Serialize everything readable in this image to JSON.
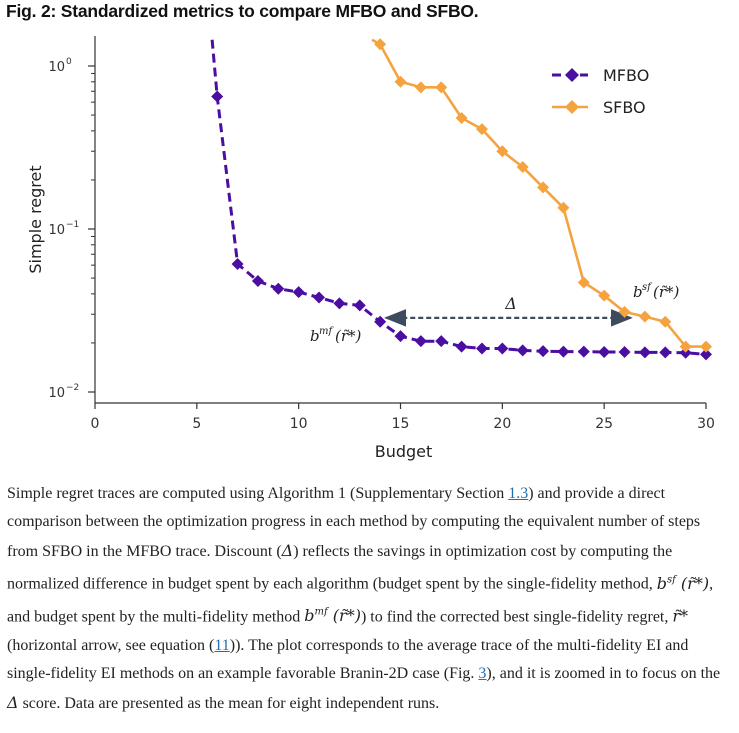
{
  "figure": {
    "title": "Fig. 2: Standardized metrics to compare MFBO and SFBO."
  },
  "chart_data": {
    "type": "line",
    "xlabel": "Budget",
    "ylabel": "Simple regret",
    "xlim": [
      0,
      30
    ],
    "ylim": [
      0.0095,
      1.45
    ],
    "yscale": "log",
    "xticks": [
      "0",
      "5",
      "10",
      "15",
      "20",
      "25",
      "30"
    ],
    "xtick_values": [
      0,
      5,
      10,
      15,
      20,
      25,
      30
    ],
    "yticks": [
      "10",
      "10",
      "10"
    ],
    "ytick_exponents": [
      "0",
      "−1",
      "−2"
    ],
    "ytick_values": [
      1,
      0.1,
      0.01
    ],
    "legend_position": "top-right",
    "grid": false,
    "series": [
      {
        "name": "MFBO",
        "color": "#4b0ea3",
        "style": "dashed",
        "marker": "diamond",
        "x": [
          6,
          7,
          8,
          9,
          10,
          11,
          12,
          13,
          14,
          15,
          16,
          17,
          18,
          19,
          20,
          21,
          22,
          23,
          24,
          25,
          26,
          27,
          28,
          29,
          30
        ],
        "y": [
          0.65,
          0.061,
          0.048,
          0.043,
          0.041,
          0.038,
          0.035,
          0.034,
          0.027,
          0.022,
          0.0205,
          0.0205,
          0.019,
          0.0185,
          0.0185,
          0.018,
          0.0178,
          0.0177,
          0.0177,
          0.0176,
          0.0176,
          0.0175,
          0.0175,
          0.0174,
          0.017
        ],
        "line_start": {
          "x": 5.75,
          "y": 1.45
        }
      },
      {
        "name": "SFBO",
        "color": "#f5a33f",
        "style": "solid",
        "marker": "diamond",
        "x": [
          14,
          15,
          16,
          17,
          18,
          19,
          20,
          21,
          22,
          23,
          24,
          25,
          26,
          27,
          28,
          29,
          30
        ],
        "y": [
          1.36,
          0.8,
          0.74,
          0.74,
          0.48,
          0.41,
          0.3,
          0.24,
          0.18,
          0.135,
          0.047,
          0.039,
          0.031,
          0.029,
          0.027,
          0.019,
          0.019
        ],
        "line_start": {
          "x": 13.6,
          "y": 1.45
        }
      }
    ],
    "annotations": {
      "discount_label": "Δ",
      "arrow": {
        "x_from": 14.3,
        "x_to": 26.3,
        "y": 0.0285
      },
      "bmf_label_main": "b",
      "bmf_label_sup": "mf",
      "bmf_label_arg": "(r̃*)",
      "bsf_label_main": "b",
      "bsf_label_sup": "sf",
      "bsf_label_arg": "(r̃*)"
    }
  },
  "caption": {
    "p1": "Simple regret traces are computed using Algorithm 1 (Supplementary Section ",
    "link1": "1.3",
    "p2": ") and provide a direct comparison between the optimization progress in each method by computing the equivalent number of steps from SFBO in the MFBO trace. Discount (",
    "delta": "Δ",
    "p3": ") reflects the savings in optimization cost by computing the normalized difference in budget spent by each algorithm (budget spent by the single-fidelity method, ",
    "bsf": "b",
    "bsf_sup": "sf",
    "bsf_arg": " (r̃*)",
    "p4": ", and budget spent by the multi-fidelity method ",
    "bmf": "b",
    "bmf_sup": "mf",
    "bmf_arg": " (r̃*)",
    "p5": ") to find the corrected best single-fidelity regret, ",
    "rtilde": "r̃*",
    "p6": " (horizontal arrow, see equation (",
    "link2": "11",
    "p7": ")). The plot corresponds to the average trace of the multi-fidelity EI and single-fidelity EI methods on an example favorable Branin-2D case (Fig. ",
    "link3": "3",
    "p8": "), and it is zoomed in to focus on the ",
    "delta2": "Δ",
    "p9": " score. Data are presented as the mean for eight independent runs."
  }
}
